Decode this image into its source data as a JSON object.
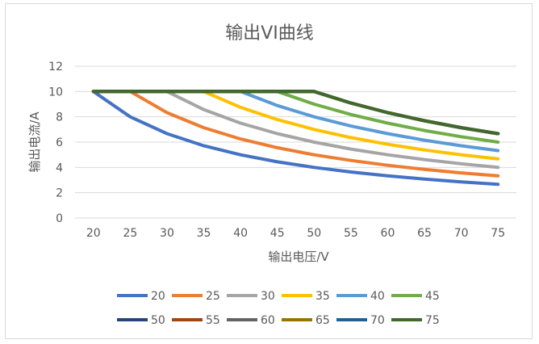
{
  "chart_data": {
    "type": "line",
    "title": "输出VI曲线",
    "xlabel": "输出电压/V",
    "ylabel": "输出电流/A",
    "x": [
      20,
      25,
      30,
      35,
      40,
      45,
      50,
      55,
      60,
      65,
      70,
      75
    ],
    "ylim": [
      0,
      12
    ],
    "yticks": [
      0,
      2,
      4,
      6,
      8,
      10,
      12
    ],
    "grid": true,
    "legend": "bottom",
    "series": [
      {
        "name": "20",
        "color": "#4472C4",
        "values": [
          10,
          8,
          6.67,
          5.71,
          5,
          4.44,
          4,
          3.64,
          3.33,
          3.08,
          2.86,
          2.67
        ]
      },
      {
        "name": "25",
        "color": "#ED7D31",
        "values": [
          10,
          10,
          8.33,
          7.14,
          6.25,
          5.56,
          5,
          4.55,
          4.17,
          3.85,
          3.57,
          3.33
        ]
      },
      {
        "name": "30",
        "color": "#A5A5A5",
        "values": [
          10,
          10,
          10,
          8.57,
          7.5,
          6.67,
          6,
          5.45,
          5,
          4.62,
          4.29,
          4
        ]
      },
      {
        "name": "35",
        "color": "#FFC000",
        "values": [
          10,
          10,
          10,
          10,
          8.75,
          7.78,
          7,
          6.36,
          5.83,
          5.38,
          5,
          4.67
        ]
      },
      {
        "name": "40",
        "color": "#5B9BD5",
        "values": [
          10,
          10,
          10,
          10,
          10,
          8.89,
          8,
          7.27,
          6.67,
          6.15,
          5.71,
          5.33
        ]
      },
      {
        "name": "45",
        "color": "#70AD47",
        "values": [
          10,
          10,
          10,
          10,
          10,
          10,
          9,
          8.18,
          7.5,
          6.92,
          6.43,
          6
        ]
      },
      {
        "name": "50",
        "color": "#264478",
        "values": [
          10,
          10,
          10,
          10,
          10,
          10,
          10,
          9.09,
          8.33,
          7.69,
          7.14,
          6.67
        ]
      },
      {
        "name": "55",
        "color": "#9E480E",
        "values": [
          10,
          10,
          10,
          10,
          10,
          10,
          10,
          9.09,
          8.33,
          7.69,
          7.14,
          6.67
        ]
      },
      {
        "name": "60",
        "color": "#636363",
        "values": [
          10,
          10,
          10,
          10,
          10,
          10,
          10,
          9.09,
          8.33,
          7.69,
          7.14,
          6.67
        ]
      },
      {
        "name": "65",
        "color": "#997300",
        "values": [
          10,
          10,
          10,
          10,
          10,
          10,
          10,
          9.09,
          8.33,
          7.69,
          7.14,
          6.67
        ]
      },
      {
        "name": "70",
        "color": "#255E91",
        "values": [
          10,
          10,
          10,
          10,
          10,
          10,
          10,
          9.09,
          8.33,
          7.69,
          7.14,
          6.67
        ]
      },
      {
        "name": "75",
        "color": "#43682B",
        "values": [
          10,
          10,
          10,
          10,
          10,
          10,
          10,
          9.09,
          8.33,
          7.69,
          7.14,
          6.67
        ]
      }
    ]
  }
}
